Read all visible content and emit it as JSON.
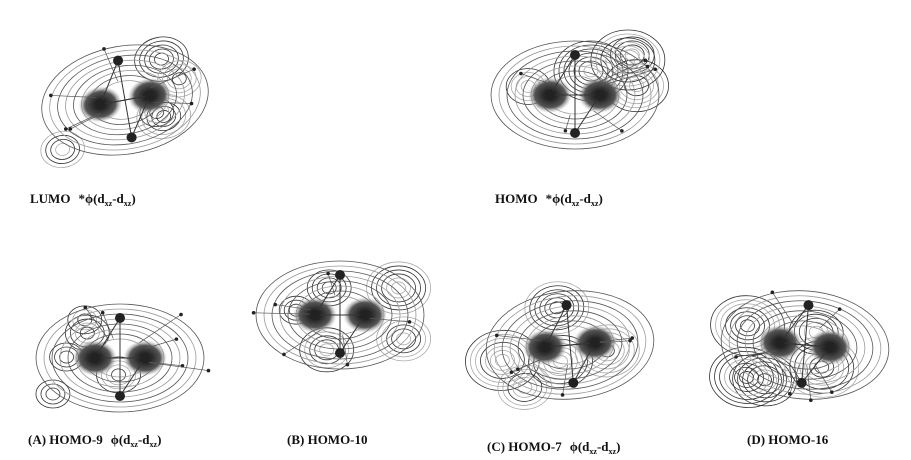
{
  "panels": [
    {
      "label": "LUMO",
      "orbital": {
        "prefix": "*ϕ(d",
        "sub1": "xz",
        "mid": "-d",
        "sub2": "xz",
        "suffix": ")"
      }
    },
    {
      "label": "HOMO",
      "orbital": {
        "prefix": "*ϕ(d",
        "sub1": "xz",
        "mid": "-d",
        "sub2": "xz",
        "suffix": ")"
      }
    },
    {
      "label": "(A) HOMO-9",
      "orbital": {
        "prefix": "ϕ(d",
        "sub1": "xz",
        "mid": "-d",
        "sub2": "xz",
        "suffix": ")"
      }
    },
    {
      "label": "(B) HOMO-10"
    },
    {
      "label": "(C) HOMO-7",
      "orbital": {
        "prefix": "ϕ(d",
        "sub1": "xz",
        "mid": "-d",
        "sub2": "xz",
        "suffix": ")"
      }
    },
    {
      "label": "(D) HOMO-16"
    }
  ]
}
